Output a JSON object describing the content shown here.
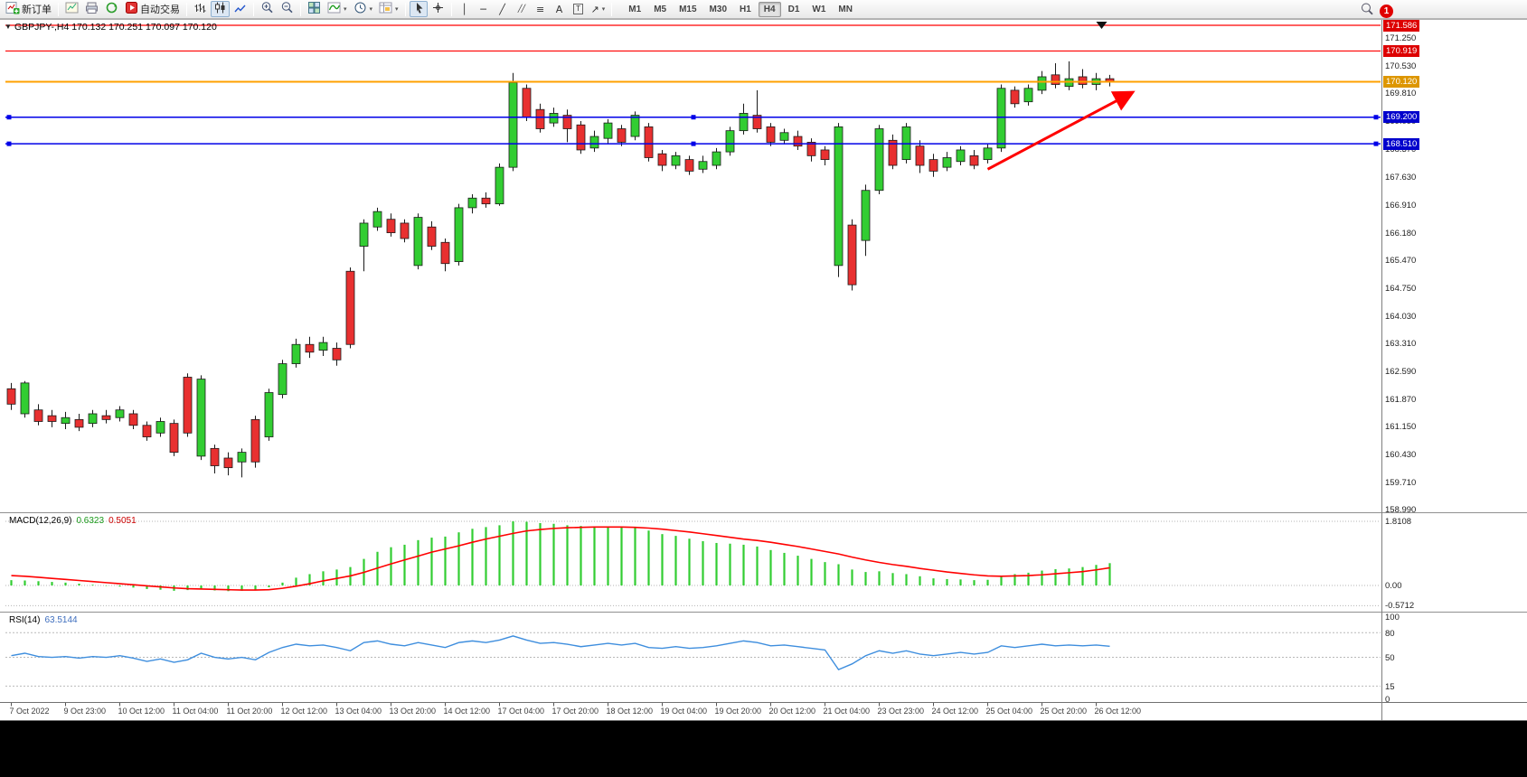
{
  "colors": {
    "bull": "#32cd32",
    "bear": "#e83030",
    "wick": "#1b1b1b",
    "candle_border": "#1b1b1b",
    "line_red": "#ff0000",
    "line_blue": "#0000e8",
    "line_orange": "#ffa000",
    "badge_red": "#dd0000",
    "badge_blue": "#0000cc",
    "badge_orange": "#dd9600",
    "macd_hist": "#32cd32",
    "macd_signal": "#ff0000",
    "rsi_line": "#3e8ede",
    "arrow": "#ff0000"
  },
  "toolbar": {
    "new_order_label": "新订单",
    "auto_trading_label": "自动交易",
    "glyphs": {
      "vline": "│",
      "hline": "─",
      "trendline": "╱",
      "channel": "╱╱",
      "fibonacci": "≡",
      "text": "A",
      "text_label": "T",
      "arrows": "↗",
      "caret": "▾"
    },
    "timeframes": [
      {
        "label": "M1",
        "active": false
      },
      {
        "label": "M5",
        "active": false
      },
      {
        "label": "M15",
        "active": false
      },
      {
        "label": "M30",
        "active": false
      },
      {
        "label": "H1",
        "active": false
      },
      {
        "label": "H4",
        "active": true
      },
      {
        "label": "D1",
        "active": false
      },
      {
        "label": "W1",
        "active": false
      },
      {
        "label": "MN",
        "active": false
      }
    ],
    "notification_count": "1"
  },
  "chart": {
    "title": "GBPJPY-,H4 170.132 170.251 170.097 170.120",
    "one_click_toggle": "▼",
    "quote": {
      "open": "170.132",
      "high": "170.251",
      "low": "170.097",
      "close": "170.120"
    }
  },
  "chart_data": {
    "type": "candlestick",
    "symbol": "GBPJPY-",
    "timeframe": "H4",
    "price_axis_range": [
      158.99,
      171.727
    ],
    "bars_per_label": 4,
    "time_labels": [
      "7 Oct 2022",
      "9 Oct 23:00",
      "10 Oct 12:00",
      "11 Oct 04:00",
      "11 Oct 20:00",
      "12 Oct 12:00",
      "13 Oct 04:00",
      "13 Oct 20:00",
      "14 Oct 12:00",
      "17 Oct 04:00",
      "17 Oct 20:00",
      "18 Oct 12:00",
      "19 Oct 04:00",
      "19 Oct 20:00",
      "20 Oct 12:00",
      "21 Oct 04:00",
      "23 Oct 23:00",
      "24 Oct 12:00",
      "25 Oct 04:00",
      "25 Oct 20:00",
      "26 Oct 12:00"
    ],
    "price_scale": [
      171.25,
      170.53,
      169.81,
      169.09,
      168.37,
      167.63,
      166.91,
      166.18,
      165.47,
      164.75,
      164.03,
      163.31,
      162.59,
      161.87,
      161.15,
      160.43,
      159.71,
      158.99
    ],
    "hlines": [
      {
        "price": 171.586,
        "color": "red",
        "width": 1.2,
        "handles": false
      },
      {
        "price": 170.919,
        "color": "red",
        "width": 1.2,
        "handles": false
      },
      {
        "price": 170.12,
        "color": "orange",
        "width": 2,
        "handles": false,
        "current": true
      },
      {
        "price": 169.2,
        "color": "blue",
        "width": 1.5,
        "handles": true
      },
      {
        "price": 168.51,
        "color": "blue",
        "width": 1.5,
        "handles": true
      }
    ],
    "trend_arrow": {
      "from_bar": 72,
      "from_price": 167.85,
      "to_bar": 82.7,
      "to_price": 169.85
    },
    "top_marker": {
      "bar": 80.4,
      "price": 171.586
    },
    "candles": [
      [
        162.15,
        162.3,
        161.6,
        161.75
      ],
      [
        161.5,
        162.35,
        161.4,
        162.3
      ],
      [
        161.6,
        161.75,
        161.2,
        161.3
      ],
      [
        161.45,
        161.6,
        161.15,
        161.3
      ],
      [
        161.25,
        161.55,
        161.1,
        161.4
      ],
      [
        161.35,
        161.5,
        161.05,
        161.15
      ],
      [
        161.25,
        161.6,
        161.15,
        161.5
      ],
      [
        161.45,
        161.6,
        161.25,
        161.35
      ],
      [
        161.4,
        161.7,
        161.3,
        161.6
      ],
      [
        161.5,
        161.6,
        161.1,
        161.2
      ],
      [
        161.2,
        161.3,
        160.8,
        160.9
      ],
      [
        161.0,
        161.4,
        160.9,
        161.3
      ],
      [
        161.25,
        161.35,
        160.4,
        160.5
      ],
      [
        162.45,
        162.55,
        160.9,
        161.0
      ],
      [
        160.4,
        162.5,
        160.3,
        162.4
      ],
      [
        160.6,
        160.7,
        159.95,
        160.15
      ],
      [
        160.35,
        160.5,
        159.9,
        160.1
      ],
      [
        160.25,
        160.6,
        159.85,
        160.5
      ],
      [
        161.35,
        161.45,
        160.1,
        160.25
      ],
      [
        160.9,
        162.15,
        160.8,
        162.05
      ],
      [
        162.0,
        162.9,
        161.9,
        162.8
      ],
      [
        162.8,
        163.45,
        162.7,
        163.3
      ],
      [
        163.3,
        163.5,
        162.95,
        163.1
      ],
      [
        163.15,
        163.5,
        163.0,
        163.35
      ],
      [
        163.2,
        163.35,
        162.75,
        162.9
      ],
      [
        165.2,
        165.3,
        163.2,
        163.3
      ],
      [
        165.85,
        166.55,
        165.2,
        166.45
      ],
      [
        166.35,
        166.85,
        166.25,
        166.75
      ],
      [
        166.55,
        166.7,
        166.1,
        166.2
      ],
      [
        166.45,
        166.55,
        165.95,
        166.05
      ],
      [
        165.35,
        166.7,
        165.25,
        166.6
      ],
      [
        166.35,
        166.5,
        165.75,
        165.85
      ],
      [
        165.95,
        166.05,
        165.2,
        165.4
      ],
      [
        165.45,
        166.95,
        165.35,
        166.85
      ],
      [
        166.85,
        167.2,
        166.7,
        167.1
      ],
      [
        167.1,
        167.25,
        166.85,
        166.95
      ],
      [
        166.95,
        168.0,
        166.9,
        167.9
      ],
      [
        167.9,
        170.35,
        167.8,
        170.1
      ],
      [
        169.95,
        170.05,
        169.1,
        169.2
      ],
      [
        169.4,
        169.55,
        168.8,
        168.9
      ],
      [
        169.05,
        169.45,
        168.95,
        169.3
      ],
      [
        169.25,
        169.4,
        168.55,
        168.9
      ],
      [
        169.0,
        169.1,
        168.25,
        168.35
      ],
      [
        168.4,
        168.85,
        168.3,
        168.7
      ],
      [
        168.65,
        169.15,
        168.5,
        169.05
      ],
      [
        168.9,
        169.0,
        168.45,
        168.55
      ],
      [
        168.7,
        169.35,
        168.6,
        169.25
      ],
      [
        168.95,
        169.05,
        168.05,
        168.15
      ],
      [
        168.25,
        168.35,
        167.8,
        167.95
      ],
      [
        167.95,
        168.3,
        167.85,
        168.2
      ],
      [
        168.1,
        168.2,
        167.7,
        167.8
      ],
      [
        167.85,
        168.2,
        167.75,
        168.05
      ],
      [
        167.95,
        168.4,
        167.85,
        168.3
      ],
      [
        168.3,
        168.95,
        168.2,
        168.85
      ],
      [
        168.85,
        169.55,
        168.75,
        169.3
      ],
      [
        169.25,
        169.9,
        168.8,
        168.9
      ],
      [
        168.95,
        169.05,
        168.45,
        168.55
      ],
      [
        168.6,
        168.9,
        168.5,
        168.8
      ],
      [
        168.7,
        168.85,
        168.35,
        168.45
      ],
      [
        168.55,
        168.65,
        168.05,
        168.2
      ],
      [
        168.35,
        168.45,
        167.95,
        168.1
      ],
      [
        165.35,
        169.05,
        165.05,
        168.95
      ],
      [
        166.4,
        166.55,
        164.7,
        164.85
      ],
      [
        166.0,
        167.45,
        165.6,
        167.3
      ],
      [
        167.3,
        169.0,
        167.2,
        168.9
      ],
      [
        168.6,
        168.75,
        167.85,
        167.95
      ],
      [
        168.1,
        169.05,
        168.0,
        168.95
      ],
      [
        168.45,
        168.6,
        167.75,
        167.95
      ],
      [
        168.1,
        168.25,
        167.65,
        167.8
      ],
      [
        167.9,
        168.3,
        167.8,
        168.15
      ],
      [
        168.05,
        168.45,
        167.95,
        168.35
      ],
      [
        168.2,
        168.35,
        167.85,
        167.95
      ],
      [
        168.1,
        168.5,
        168.0,
        168.4
      ],
      [
        168.4,
        170.05,
        168.3,
        169.95
      ],
      [
        169.9,
        170.0,
        169.45,
        169.55
      ],
      [
        169.6,
        170.05,
        169.5,
        169.95
      ],
      [
        169.9,
        170.4,
        169.8,
        170.25
      ],
      [
        170.3,
        170.6,
        169.95,
        170.05
      ],
      [
        170.0,
        170.65,
        169.9,
        170.2
      ],
      [
        170.25,
        170.45,
        169.95,
        170.05
      ],
      [
        170.05,
        170.35,
        169.9,
        170.2
      ],
      [
        170.2,
        170.3,
        170.0,
        170.12
      ]
    ],
    "macd": {
      "label": "MACD(12,26,9)",
      "value_main": "0.6323",
      "value_signal": "0.5051",
      "scale_labels": [
        "1.8108",
        "0.00",
        "-0.5712"
      ],
      "scale_values": [
        1.8108,
        0,
        -0.5712
      ],
      "histogram": [
        0.15,
        0.14,
        0.12,
        0.1,
        0.08,
        0.05,
        0.02,
        -0.01,
        -0.03,
        -0.06,
        -0.1,
        -0.12,
        -0.15,
        -0.13,
        -0.1,
        -0.14,
        -0.16,
        -0.15,
        -0.13,
        -0.05,
        0.08,
        0.22,
        0.32,
        0.4,
        0.45,
        0.52,
        0.75,
        0.95,
        1.08,
        1.15,
        1.28,
        1.35,
        1.38,
        1.5,
        1.6,
        1.65,
        1.7,
        1.81,
        1.8,
        1.76,
        1.74,
        1.7,
        1.68,
        1.66,
        1.67,
        1.64,
        1.62,
        1.55,
        1.45,
        1.4,
        1.32,
        1.25,
        1.2,
        1.18,
        1.15,
        1.1,
        1.0,
        0.92,
        0.84,
        0.75,
        0.66,
        0.6,
        0.45,
        0.38,
        0.4,
        0.35,
        0.32,
        0.26,
        0.2,
        0.18,
        0.17,
        0.15,
        0.16,
        0.28,
        0.32,
        0.36,
        0.42,
        0.46,
        0.48,
        0.52,
        0.58,
        0.63
      ],
      "signal": [
        0.28,
        0.26,
        0.23,
        0.2,
        0.17,
        0.14,
        0.11,
        0.08,
        0.05,
        0.02,
        -0.01,
        -0.04,
        -0.07,
        -0.09,
        -0.1,
        -0.11,
        -0.12,
        -0.13,
        -0.13,
        -0.12,
        -0.08,
        -0.02,
        0.05,
        0.13,
        0.2,
        0.27,
        0.37,
        0.49,
        0.61,
        0.72,
        0.83,
        0.94,
        1.03,
        1.12,
        1.22,
        1.31,
        1.39,
        1.47,
        1.54,
        1.58,
        1.61,
        1.63,
        1.64,
        1.65,
        1.65,
        1.65,
        1.64,
        1.62,
        1.59,
        1.55,
        1.51,
        1.46,
        1.41,
        1.36,
        1.31,
        1.27,
        1.22,
        1.16,
        1.1,
        1.03,
        0.96,
        0.89,
        0.8,
        0.72,
        0.65,
        0.59,
        0.54,
        0.48,
        0.43,
        0.38,
        0.34,
        0.3,
        0.27,
        0.26,
        0.27,
        0.28,
        0.3,
        0.33,
        0.36,
        0.39,
        0.44,
        0.5
      ]
    },
    "rsi": {
      "label": "RSI(14)",
      "value": "63.5144",
      "scale_labels": [
        "100",
        "80",
        "50",
        "15",
        "0"
      ],
      "scale_values": [
        100,
        80,
        50,
        15,
        0
      ],
      "dashed_levels": [
        80,
        50,
        15
      ],
      "series": [
        52,
        55,
        51,
        50,
        51,
        49,
        51,
        50,
        52,
        49,
        45,
        48,
        44,
        47,
        55,
        50,
        48,
        50,
        47,
        56,
        62,
        66,
        64,
        65,
        62,
        58,
        68,
        70,
        66,
        64,
        68,
        65,
        62,
        68,
        70,
        68,
        71,
        76,
        71,
        67,
        68,
        66,
        63,
        65,
        67,
        65,
        67,
        62,
        61,
        63,
        61,
        62,
        64,
        67,
        70,
        68,
        64,
        65,
        63,
        61,
        59,
        35,
        42,
        52,
        58,
        55,
        58,
        54,
        52,
        54,
        56,
        54,
        56,
        64,
        62,
        64,
        66,
        64,
        65,
        64,
        65,
        63.5
      ]
    }
  }
}
